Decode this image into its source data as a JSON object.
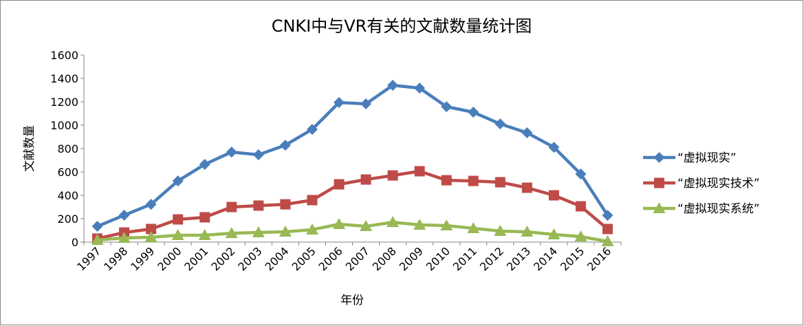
{
  "chart_data": {
    "type": "line",
    "title": "CNKI中与VR有关的文献数量统计图",
    "xlabel": "年份",
    "ylabel": "文献数量",
    "ylim": [
      0,
      1600
    ],
    "yticks": [
      "0",
      "200",
      "400",
      "600",
      "800",
      "1000",
      "1200",
      "1400",
      "1600"
    ],
    "grid": false,
    "legend_position": "right",
    "categories": [
      "1997",
      "1998",
      "1999",
      "2000",
      "2001",
      "2002",
      "2003",
      "2004",
      "2005",
      "2006",
      "2007",
      "2008",
      "2009",
      "2010",
      "2011",
      "2012",
      "2013",
      "2014",
      "2015",
      "2016"
    ],
    "series": [
      {
        "name": "“虚拟现实”",
        "color": "#4a7ebb",
        "marker": "diamond",
        "values": [
          135,
          230,
          323,
          523,
          665,
          770,
          747,
          829,
          964,
          1194,
          1182,
          1341,
          1317,
          1158,
          1111,
          1011,
          935,
          811,
          582,
          229
        ]
      },
      {
        "name": "“虚拟现实技术”",
        "color": "#be4b48",
        "marker": "square",
        "values": [
          30,
          82,
          112,
          194,
          212,
          300,
          312,
          323,
          359,
          494,
          535,
          570,
          606,
          529,
          523,
          512,
          465,
          400,
          306,
          112
        ]
      },
      {
        "name": "“虚拟现实系统”",
        "color": "#98b954",
        "marker": "triangle",
        "values": [
          18,
          35,
          41,
          59,
          59,
          76,
          82,
          88,
          106,
          153,
          135,
          170,
          147,
          141,
          118,
          94,
          88,
          65,
          47,
          6
        ]
      }
    ]
  }
}
